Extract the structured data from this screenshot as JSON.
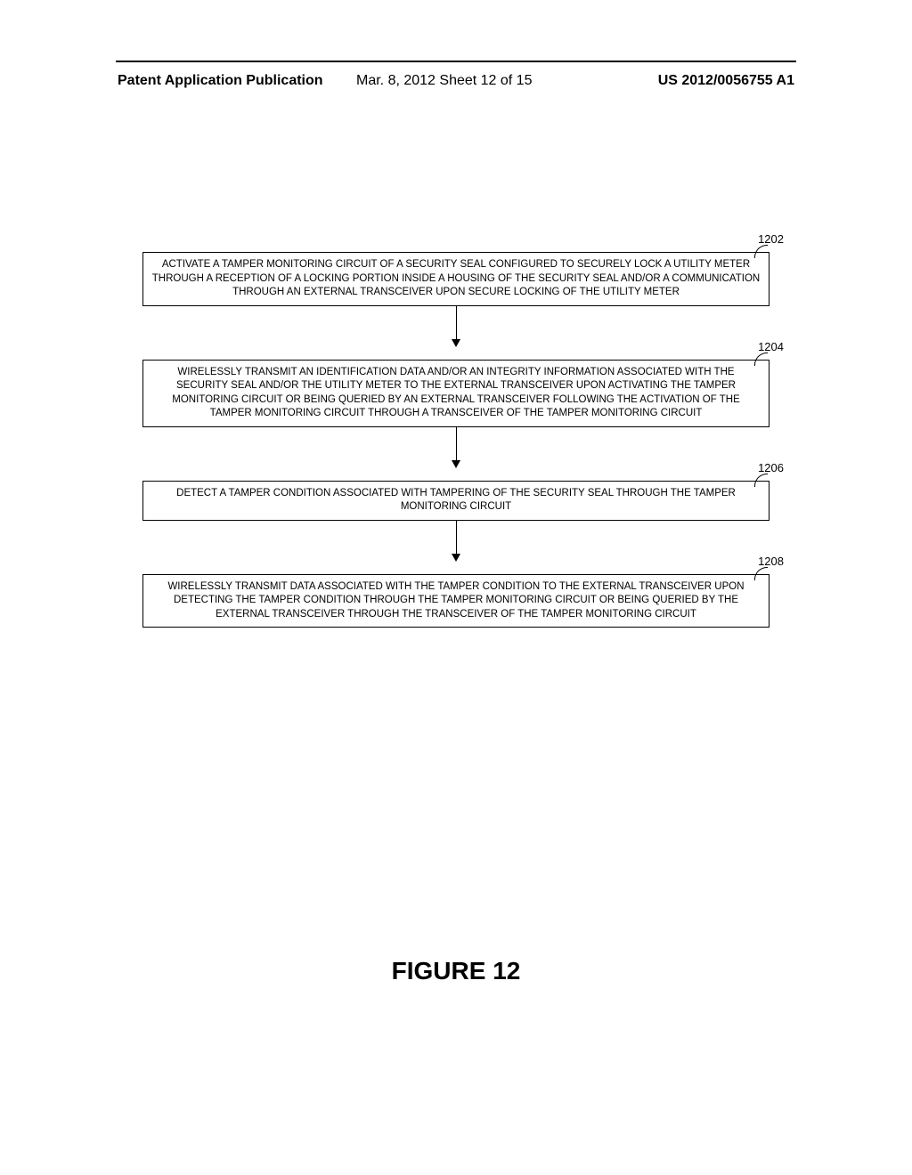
{
  "header": {
    "left": "Patent Application Publication",
    "mid": "Mar. 8, 2012  Sheet 12 of 15",
    "right": "US 2012/0056755 A1"
  },
  "flow": {
    "steps": [
      {
        "ref": "1202",
        "text": "ACTIVATE A TAMPER MONITORING CIRCUIT OF A SECURITY SEAL CONFIGURED TO SECURELY LOCK A UTILITY METER THROUGH A RECEPTION OF A LOCKING PORTION INSIDE A HOUSING OF THE SECURITY SEAL AND/OR A COMMUNICATION THROUGH AN EXTERNAL TRANSCEIVER UPON SECURE LOCKING OF THE UTILITY METER"
      },
      {
        "ref": "1204",
        "text": "WIRELESSLY TRANSMIT AN IDENTIFICATION DATA AND/OR AN INTEGRITY INFORMATION ASSOCIATED WITH THE SECURITY SEAL AND/OR THE UTILITY METER TO THE EXTERNAL TRANSCEIVER UPON ACTIVATING THE TAMPER MONITORING CIRCUIT OR BEING QUERIED BY AN EXTERNAL TRANSCEIVER FOLLOWING THE ACTIVATION OF THE TAMPER MONITORING CIRCUIT THROUGH A TRANSCEIVER OF THE TAMPER MONITORING CIRCUIT"
      },
      {
        "ref": "1206",
        "text": "DETECT A TAMPER CONDITION ASSOCIATED WITH TAMPERING OF THE SECURITY SEAL THROUGH THE TAMPER MONITORING CIRCUIT"
      },
      {
        "ref": "1208",
        "text": "WIRELESSLY TRANSMIT DATA ASSOCIATED WITH THE TAMPER CONDITION TO THE EXTERNAL TRANSCEIVER UPON DETECTING THE TAMPER CONDITION THROUGH THE TAMPER MONITORING CIRCUIT OR BEING QUERIED BY THE EXTERNAL TRANSCEIVER THROUGH THE TRANSCEIVER OF THE TAMPER MONITORING CIRCUIT"
      }
    ],
    "box_border_color": "#000000",
    "text_color": "#000000",
    "font_size_pt": 9,
    "arrow_color": "#000000"
  },
  "figure_title": "FIGURE 12",
  "page_bg": "#ffffff"
}
